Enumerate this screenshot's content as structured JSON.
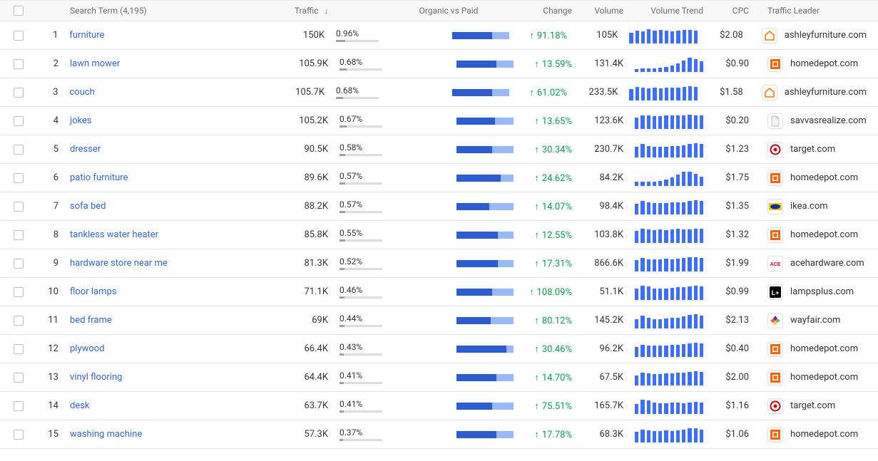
{
  "colors": {
    "link": "#3366cc",
    "green": "#0a9e4e",
    "bar_org": "#2a5cd6",
    "bar_paid": "#99b8ff",
    "spark": "#3b6fff"
  },
  "header": {
    "search_term": "Search Term (4,195)",
    "traffic": "Traffic",
    "ovp": "Organic vs Paid",
    "change": "Change",
    "volume": "Volume",
    "trend": "Volume Trend",
    "cpc": "CPC",
    "leader": "Traffic Leader"
  },
  "favicons": {
    "ashleyfurniture.com": {
      "type": "house_outline",
      "color": "#ff7a00"
    },
    "homedepot.com": {
      "type": "square",
      "color": "#f96302"
    },
    "savvasrealize.com": {
      "type": "doc",
      "color": "#bdbdbd"
    },
    "target.com": {
      "type": "target",
      "color": "#cc0000"
    },
    "ikea.com": {
      "type": "ikea",
      "bg": "#ffcc00",
      "fg": "#003399"
    },
    "acehardware.com": {
      "type": "ace",
      "color": "#d0021b"
    },
    "lampsplus.com": {
      "type": "lp",
      "bg": "#000000",
      "fg": "#ffffff"
    },
    "wayfair.com": {
      "type": "wayfair",
      "c1": "#7b1fa2",
      "c2": "#66bb6a",
      "c3": "#ffca28",
      "c4": "#ef5350"
    }
  },
  "rows": [
    {
      "n": 1,
      "term": "furniture",
      "traffic": "150K",
      "pct": "0.96%",
      "pct_fill": 22,
      "org": 70,
      "change": "91.18%",
      "volume": "105K",
      "spark": [
        15,
        18,
        17,
        20,
        18,
        19,
        18,
        17,
        18,
        19,
        19,
        18
      ],
      "cpc": "$2.08",
      "leader": "ashleyfurniture.com"
    },
    {
      "n": 2,
      "term": "lawn mower",
      "traffic": "105.9K",
      "pct": "0.68%",
      "pct_fill": 16,
      "org": 70,
      "change": "13.59%",
      "volume": "131.4K",
      "spark": [
        4,
        5,
        5,
        5,
        6,
        7,
        9,
        12,
        16,
        20,
        18,
        15
      ],
      "cpc": "$0.90",
      "leader": "homedepot.com"
    },
    {
      "n": 3,
      "term": "couch",
      "traffic": "105.7K",
      "pct": "0.68%",
      "pct_fill": 16,
      "org": 70,
      "change": "61.02%",
      "volume": "233.5K",
      "spark": [
        15,
        18,
        17,
        16,
        17,
        16,
        17,
        17,
        17,
        18,
        19,
        18
      ],
      "cpc": "$1.58",
      "leader": "ashleyfurniture.com"
    },
    {
      "n": 4,
      "term": "jokes",
      "traffic": "105.2K",
      "pct": "0.67%",
      "pct_fill": 16,
      "org": 68,
      "change": "13.65%",
      "volume": "123.6K",
      "spark": [
        15,
        18,
        18,
        17,
        17,
        18,
        18,
        18,
        18,
        19,
        18,
        18
      ],
      "cpc": "$0.20",
      "leader": "savvasrealize.com"
    },
    {
      "n": 5,
      "term": "dresser",
      "traffic": "90.5K",
      "pct": "0.58%",
      "pct_fill": 14,
      "org": 62,
      "change": "30.34%",
      "volume": "230.7K",
      "spark": [
        14,
        18,
        15,
        14,
        14,
        14,
        15,
        15,
        16,
        18,
        19,
        18
      ],
      "cpc": "$1.23",
      "leader": "target.com"
    },
    {
      "n": 6,
      "term": "patio furniture",
      "traffic": "89.6K",
      "pct": "0.57%",
      "pct_fill": 14,
      "org": 78,
      "change": "24.62%",
      "volume": "84.2K",
      "spark": [
        6,
        6,
        6,
        6,
        7,
        9,
        12,
        16,
        20,
        20,
        17,
        13
      ],
      "cpc": "$1.75",
      "leader": "homedepot.com"
    },
    {
      "n": 7,
      "term": "sofa bed",
      "traffic": "88.2K",
      "pct": "0.57%",
      "pct_fill": 14,
      "org": 58,
      "change": "14.07%",
      "volume": "98.4K",
      "spark": [
        14,
        18,
        16,
        15,
        15,
        15,
        16,
        16,
        16,
        18,
        19,
        18
      ],
      "cpc": "$1.35",
      "leader": "ikea.com"
    },
    {
      "n": 8,
      "term": "tankless water heater",
      "traffic": "85.8K",
      "pct": "0.55%",
      "pct_fill": 13,
      "org": 72,
      "change": "12.55%",
      "volume": "103.8K",
      "spark": [
        15,
        18,
        17,
        16,
        17,
        16,
        17,
        18,
        17,
        17,
        18,
        18
      ],
      "cpc": "$1.32",
      "leader": "homedepot.com"
    },
    {
      "n": 9,
      "term": "hardware store near me",
      "traffic": "81.3K",
      "pct": "0.52%",
      "pct_fill": 12,
      "org": 72,
      "change": "17.31%",
      "volume": "866.6K",
      "spark": [
        15,
        18,
        16,
        16,
        16,
        17,
        16,
        17,
        18,
        19,
        19,
        18
      ],
      "cpc": "$1.99",
      "leader": "acehardware.com"
    },
    {
      "n": 10,
      "term": "floor lamps",
      "traffic": "71.1K",
      "pct": "0.46%",
      "pct_fill": 11,
      "org": 62,
      "change": "108.09%",
      "volume": "51.1K",
      "spark": [
        14,
        18,
        17,
        14,
        14,
        14,
        15,
        16,
        16,
        17,
        18,
        17
      ],
      "cpc": "$0.99",
      "leader": "lampsplus.com"
    },
    {
      "n": 11,
      "term": "bed frame",
      "traffic": "69K",
      "pct": "0.44%",
      "pct_fill": 11,
      "org": 60,
      "change": "80.12%",
      "volume": "145.2K",
      "spark": [
        13,
        18,
        15,
        13,
        13,
        14,
        15,
        15,
        17,
        19,
        20,
        18
      ],
      "cpc": "$2.13",
      "leader": "wayfair.com"
    },
    {
      "n": 12,
      "term": "plywood",
      "traffic": "66.4K",
      "pct": "0.43%",
      "pct_fill": 10,
      "org": 88,
      "change": "30.46%",
      "volume": "96.2K",
      "spark": [
        14,
        17,
        16,
        16,
        16,
        16,
        17,
        17,
        18,
        19,
        20,
        19
      ],
      "cpc": "$0.40",
      "leader": "homedepot.com"
    },
    {
      "n": 13,
      "term": "vinyl flooring",
      "traffic": "64.4K",
      "pct": "0.41%",
      "pct_fill": 10,
      "org": 70,
      "change": "14.70%",
      "volume": "67.5K",
      "spark": [
        14,
        18,
        17,
        16,
        16,
        17,
        17,
        18,
        18,
        19,
        20,
        19
      ],
      "cpc": "$2.00",
      "leader": "homedepot.com"
    },
    {
      "n": 14,
      "term": "desk",
      "traffic": "63.7K",
      "pct": "0.41%",
      "pct_fill": 10,
      "org": 62,
      "change": "75.51%",
      "volume": "165.7K",
      "spark": [
        13,
        19,
        18,
        15,
        14,
        14,
        15,
        15,
        14,
        15,
        16,
        15
      ],
      "cpc": "$1.16",
      "leader": "target.com"
    },
    {
      "n": 15,
      "term": "washing machine",
      "traffic": "57.3K",
      "pct": "0.37%",
      "pct_fill": 9,
      "org": 70,
      "change": "17.78%",
      "volume": "68.3K",
      "spark": [
        15,
        18,
        17,
        16,
        16,
        17,
        16,
        17,
        18,
        20,
        20,
        18
      ],
      "cpc": "$1.06",
      "leader": "homedepot.com"
    }
  ]
}
